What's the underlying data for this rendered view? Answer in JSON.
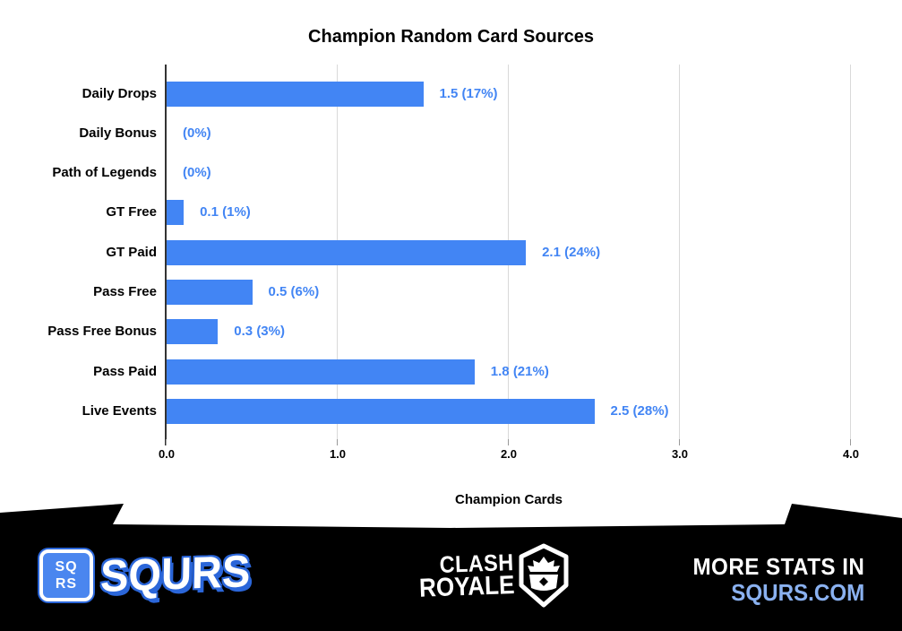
{
  "chart_data": {
    "type": "bar",
    "orientation": "horizontal",
    "title": "Champion Random Card Sources",
    "xlabel": "Champion Cards",
    "xlim": [
      0,
      4
    ],
    "xticks": [
      "0.0",
      "1.0",
      "2.0",
      "3.0",
      "4.0"
    ],
    "categories": [
      "Daily Drops",
      "Daily Bonus",
      "Path of Legends",
      "GT Free",
      "GT Paid",
      "Pass Free",
      "Pass Free Bonus",
      "Pass Paid",
      "Live Events"
    ],
    "values": [
      1.5,
      0,
      0,
      0.1,
      2.1,
      0.5,
      0.3,
      1.8,
      2.5
    ],
    "value_labels": [
      "1.5 (17%)",
      "(0%)",
      "(0%)",
      "0.1 (1%)",
      "2.1 (24%)",
      "0.5 (6%)",
      "0.3 (3%)",
      "1.8 (21%)",
      "2.5 (28%)"
    ],
    "bar_color": "#4285f4",
    "value_label_color": "#4285f4",
    "category_label_color": "#000000",
    "gridline_color": "#d9d9d9",
    "axis_color": "#333333",
    "grid": true,
    "legend": "none"
  },
  "footer": {
    "background_color": "#000000",
    "squrs_logo": {
      "badge_line1": "SQ",
      "badge_line2": "RS",
      "badge_fill": "#4a86ef",
      "badge_outline": "#2b66d9",
      "wordmark": "SQURS"
    },
    "clash_royale_logo": {
      "line1": "CLASH",
      "line2": "ROYALE",
      "icon": "crown-shield-icon"
    },
    "more_stats": {
      "line1": "MORE STATS IN",
      "line2": "SQURS.COM",
      "line2_color": "#8ab1f0"
    }
  }
}
